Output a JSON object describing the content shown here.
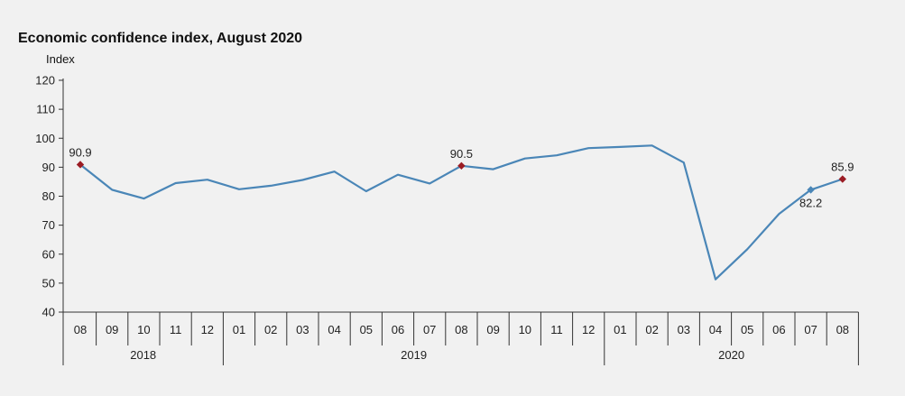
{
  "chart_data": {
    "type": "line",
    "title": "Economic confidence index, August 2020",
    "ylabel": "Index",
    "xlabel": "",
    "ylim": [
      40,
      120
    ],
    "yticks": [
      40,
      50,
      60,
      70,
      80,
      90,
      100,
      110,
      120
    ],
    "grid": false,
    "line_color": "#4a86b7",
    "highlight_color": "#9b1c24",
    "months": [
      "08",
      "09",
      "10",
      "11",
      "12",
      "01",
      "02",
      "03",
      "04",
      "05",
      "06",
      "07",
      "08",
      "09",
      "10",
      "11",
      "12",
      "01",
      "02",
      "03",
      "04",
      "05",
      "06",
      "07",
      "08"
    ],
    "years": [
      {
        "label": "2018",
        "start": 0,
        "end": 4
      },
      {
        "label": "2019",
        "start": 5,
        "end": 16
      },
      {
        "label": "2020",
        "start": 17,
        "end": 24
      }
    ],
    "series": [
      {
        "values": [
          90.9,
          82.2,
          79.2,
          84.5,
          85.7,
          82.4,
          83.6,
          85.6,
          88.5,
          81.7,
          87.4,
          84.4,
          90.5,
          89.3,
          93.0,
          94.1,
          96.6,
          97.0,
          97.5,
          91.6,
          51.3,
          61.7,
          73.9,
          82.2,
          85.9
        ]
      }
    ],
    "annotations": [
      {
        "index": 0,
        "label": "90.9",
        "marker": "highlight",
        "position": "above"
      },
      {
        "index": 12,
        "label": "90.5",
        "marker": "highlight",
        "position": "above"
      },
      {
        "index": 23,
        "label": "82.2",
        "marker": "normal",
        "position": "below"
      },
      {
        "index": 24,
        "label": "85.9",
        "marker": "highlight",
        "position": "above"
      }
    ]
  }
}
